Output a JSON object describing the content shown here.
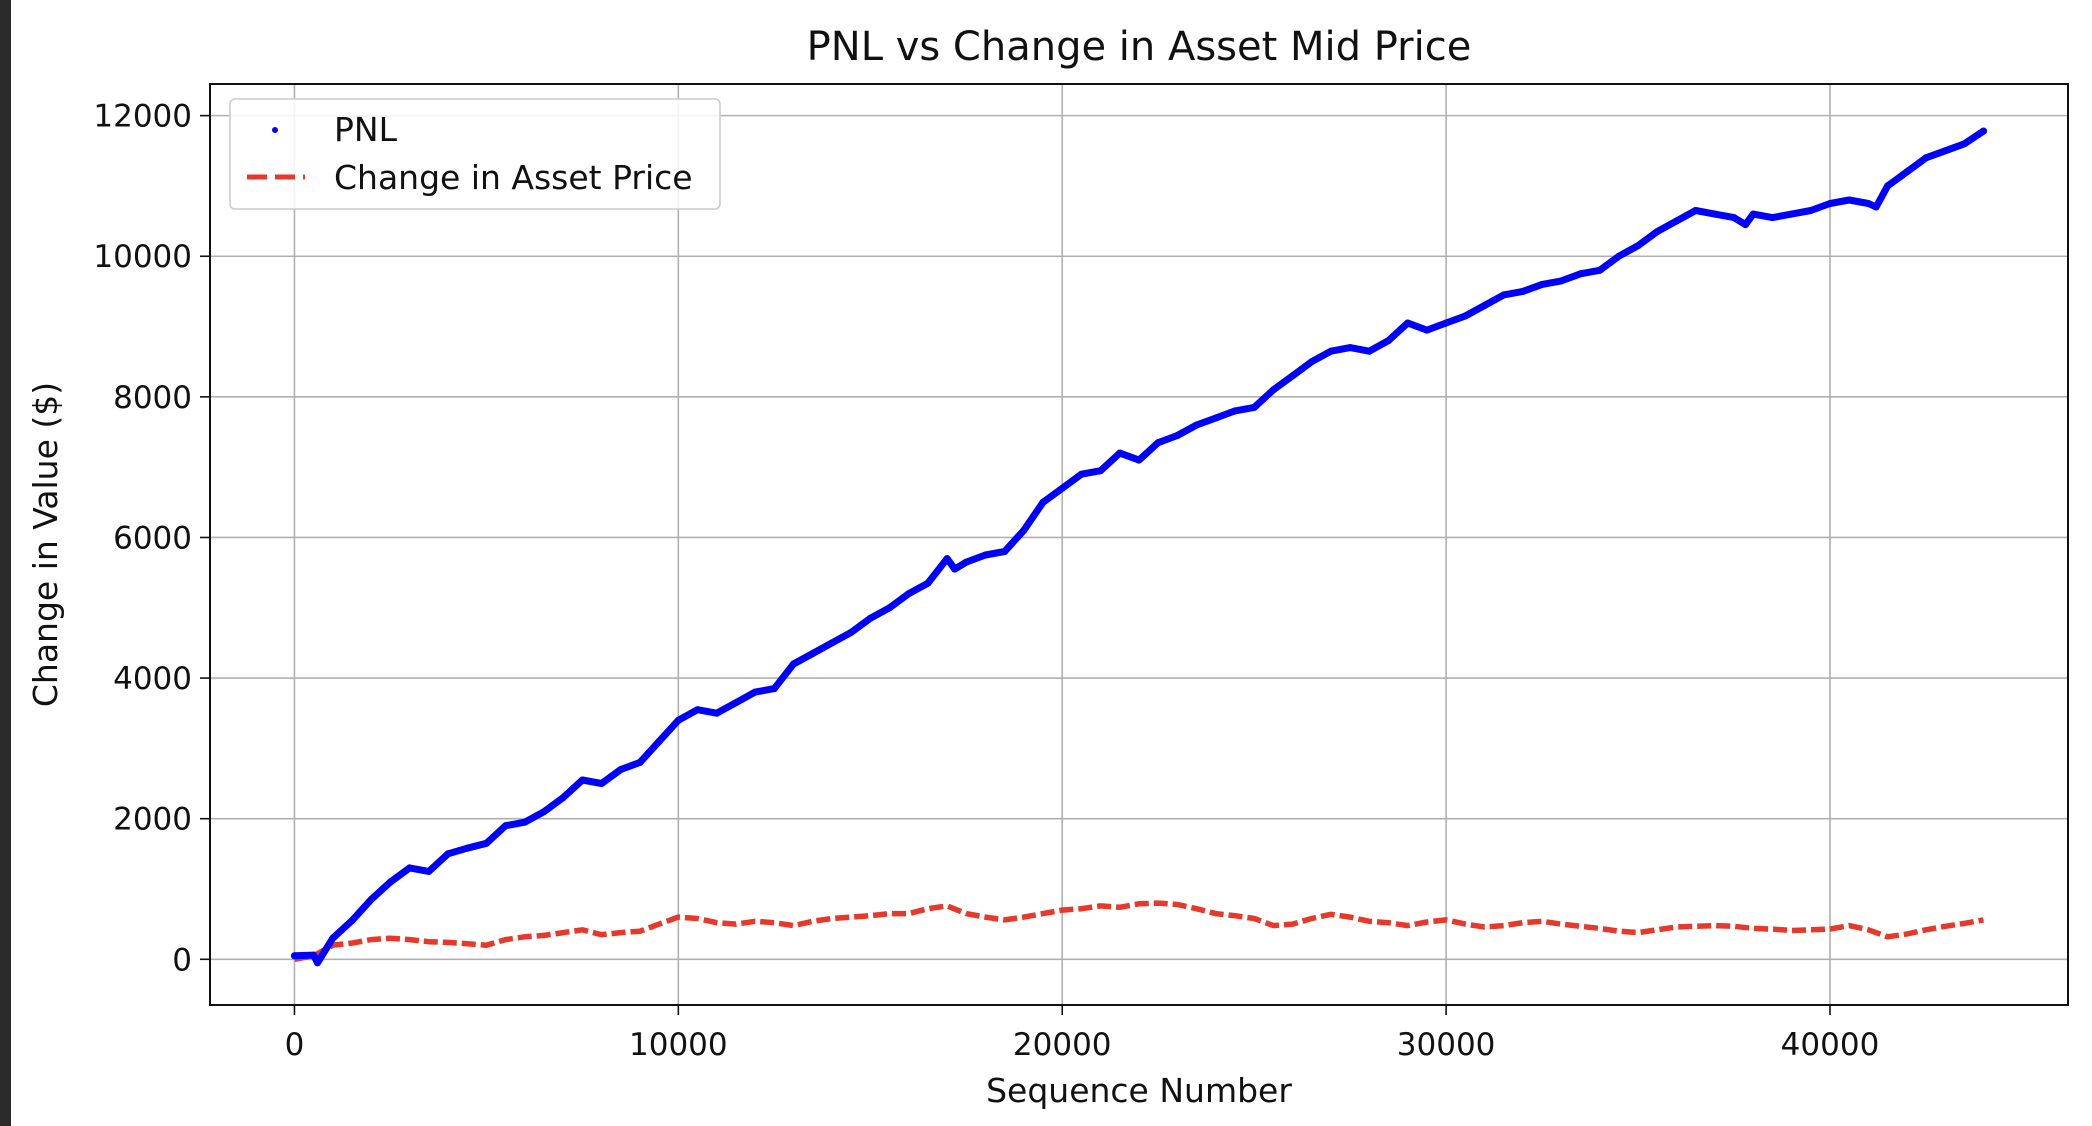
{
  "chart_data": {
    "type": "line",
    "title": "PNL vs Change in Asset Mid Price",
    "xlabel": "Sequence Number",
    "ylabel": "Change in Value ($)",
    "xlim": [
      -2200,
      46200
    ],
    "ylim": [
      -650,
      12450
    ],
    "x_ticks": [
      0,
      10000,
      20000,
      30000,
      40000
    ],
    "x_tick_labels": [
      "0",
      "10000",
      "20000",
      "30000",
      "40000"
    ],
    "y_ticks": [
      0,
      2000,
      4000,
      6000,
      8000,
      10000,
      12000
    ],
    "y_tick_labels": [
      "0",
      "2000",
      "4000",
      "6000",
      "8000",
      "10000",
      "12000"
    ],
    "grid": true,
    "legend_position": "top-left",
    "series": [
      {
        "name": "PNL",
        "style": "dots",
        "color": "#0000ff",
        "x": [
          0,
          500,
          600,
          1000,
          1500,
          2000,
          2500,
          3000,
          3500,
          4000,
          4500,
          5000,
          5500,
          6000,
          6500,
          7000,
          7500,
          8000,
          8500,
          9000,
          9500,
          10000,
          10500,
          11000,
          11500,
          12000,
          12500,
          13000,
          13500,
          14000,
          14500,
          15000,
          15500,
          16000,
          16500,
          17000,
          17200,
          17500,
          18000,
          18500,
          19000,
          19500,
          20000,
          20500,
          21000,
          21500,
          22000,
          22500,
          23000,
          23500,
          24000,
          24500,
          25000,
          25500,
          26000,
          26500,
          27000,
          27500,
          28000,
          28500,
          29000,
          29500,
          30000,
          30500,
          31000,
          31500,
          32000,
          32500,
          33000,
          33500,
          34000,
          34500,
          35000,
          35500,
          36000,
          36500,
          37000,
          37500,
          37800,
          38000,
          38500,
          39000,
          39500,
          40000,
          40500,
          41000,
          41200,
          41500,
          42000,
          42500,
          43000,
          43500,
          44000
        ],
        "values": [
          50,
          60,
          -50,
          300,
          550,
          850,
          1100,
          1300,
          1250,
          1500,
          1580,
          1650,
          1900,
          1950,
          2100,
          2300,
          2550,
          2500,
          2700,
          2800,
          3100,
          3400,
          3550,
          3500,
          3650,
          3800,
          3850,
          4200,
          4350,
          4500,
          4650,
          4850,
          5000,
          5200,
          5350,
          5700,
          5550,
          5650,
          5750,
          5800,
          6100,
          6500,
          6700,
          6900,
          6950,
          7200,
          7100,
          7350,
          7450,
          7600,
          7700,
          7800,
          7850,
          8100,
          8300,
          8500,
          8650,
          8700,
          8650,
          8800,
          9050,
          8950,
          9050,
          9150,
          9300,
          9450,
          9500,
          9600,
          9650,
          9750,
          9800,
          10000,
          10150,
          10350,
          10500,
          10650,
          10600,
          10550,
          10450,
          10600,
          10550,
          10600,
          10650,
          10750,
          10800,
          10750,
          10700,
          11000,
          11200,
          11400,
          11500,
          11600,
          11780
        ]
      },
      {
        "name": "Change in Asset Price",
        "style": "dashed",
        "color": "#e8382a",
        "x": [
          0,
          500,
          1000,
          1500,
          2000,
          2500,
          3000,
          3500,
          4000,
          4500,
          5000,
          5500,
          6000,
          6500,
          7000,
          7500,
          8000,
          8500,
          9000,
          9500,
          10000,
          10500,
          11000,
          11500,
          12000,
          12500,
          13000,
          13500,
          14000,
          14500,
          15000,
          15500,
          16000,
          16500,
          17000,
          17500,
          18000,
          18500,
          19000,
          19500,
          20000,
          20500,
          21000,
          21500,
          22000,
          22500,
          23000,
          23500,
          24000,
          24500,
          25000,
          25500,
          26000,
          26500,
          27000,
          27500,
          28000,
          28500,
          29000,
          29500,
          30000,
          30500,
          31000,
          31500,
          32000,
          32500,
          33000,
          33500,
          34000,
          34500,
          35000,
          35500,
          36000,
          36500,
          37000,
          37500,
          38000,
          38500,
          39000,
          39500,
          40000,
          40500,
          41000,
          41500,
          42000,
          42500,
          43000,
          43500,
          44000
        ],
        "values": [
          0,
          50,
          200,
          230,
          280,
          300,
          280,
          250,
          240,
          220,
          200,
          280,
          320,
          340,
          380,
          420,
          350,
          380,
          400,
          500,
          600,
          580,
          520,
          500,
          540,
          520,
          480,
          540,
          580,
          600,
          620,
          650,
          650,
          720,
          760,
          650,
          600,
          560,
          600,
          650,
          700,
          720,
          760,
          740,
          790,
          800,
          780,
          720,
          650,
          620,
          580,
          480,
          500,
          580,
          640,
          600,
          540,
          520,
          480,
          530,
          560,
          500,
          460,
          480,
          520,
          540,
          500,
          470,
          440,
          400,
          380,
          420,
          460,
          470,
          480,
          470,
          440,
          430,
          410,
          420,
          430,
          480,
          420,
          320,
          360,
          420,
          470,
          510,
          560
        ]
      }
    ]
  }
}
